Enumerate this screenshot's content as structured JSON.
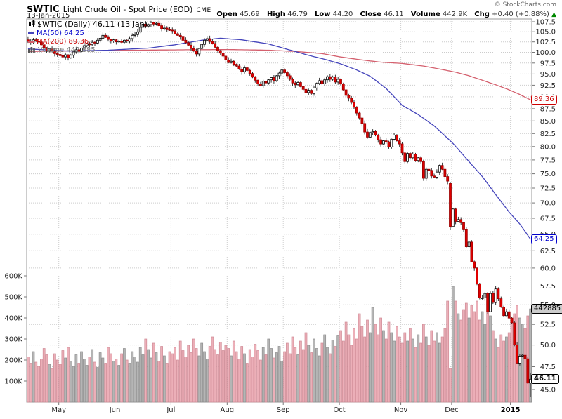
{
  "header": {
    "symbol": "$WTIC",
    "title": "Light Crude Oil - Spot Price (EOD)",
    "exchange": "CME",
    "date": "13-Jan-2015",
    "copyright": "© StockCharts.com",
    "quote": {
      "open_label": "Open",
      "open": "45.69",
      "high_label": "High",
      "high": "46.79",
      "low_label": "Low",
      "low": "44.20",
      "close_label": "Close",
      "close": "46.11",
      "volume_label": "Volume",
      "volume": "442.9K",
      "chg_label": "Chg",
      "chg": "+0.40 (+0.88%)",
      "direction": "▲"
    }
  },
  "legend": {
    "main": "$WTIC (Daily) 46.11 (13 Jan)",
    "ma50": "MA(50) 64.25",
    "ma200": "MA(200) 89.36",
    "volume": "Volume 442,885"
  },
  "colors": {
    "up_fill": "#ffffff",
    "up_stroke": "#000000",
    "down_fill": "#e00000",
    "down_stroke": "#990000",
    "wick": "#333333",
    "ma50": "#4444bb",
    "ma50_text": "#0000cc",
    "ma200": "#d4606e",
    "ma200_text": "#cc0000",
    "vol_up_fill": "#b5b5b5",
    "vol_up_stroke": "#8d8d8d",
    "vol_down_fill": "#ecafb8",
    "vol_down_stroke": "#cf8a95",
    "grid": "#cccccc",
    "border": "#999999",
    "axis_text": "#222222",
    "chg_up": "#008800"
  },
  "callouts": [
    {
      "id": "ma200",
      "text": "89.36",
      "value": 89.36,
      "scale": "price",
      "color": "#cc0000",
      "bg": "#ffffff",
      "bold": false
    },
    {
      "id": "ma50",
      "text": "64.25",
      "value": 64.25,
      "scale": "price",
      "color": "#0000cc",
      "bg": "#ffffff",
      "bold": false
    },
    {
      "id": "vol",
      "text": "442885",
      "value": 442.885,
      "scale": "volume",
      "color": "#000000",
      "bg": "#cccccc",
      "bold": false
    },
    {
      "id": "last",
      "text": "46.11",
      "value": 46.11,
      "scale": "price",
      "color": "#000000",
      "bg": "#ffffff",
      "bold": true
    }
  ],
  "chart_data": {
    "type": "candlestick+volume",
    "title": "$WTIC Light Crude Oil - Spot Price (EOD) CME, Daily, mid-Apr 2014 to 13-Jan-2015",
    "y_axis": {
      "scale": "log",
      "min": 45.0,
      "max": 107.5,
      "step": 2.5,
      "side": "right"
    },
    "volume_axis": {
      "min": 0,
      "max": 600,
      "step": 100,
      "unit": "K",
      "side": "left"
    },
    "x_axis": {
      "month_ticks": [
        {
          "label": "May",
          "day": 12,
          "bold": false
        },
        {
          "label": "Jun",
          "day": 33,
          "bold": false
        },
        {
          "label": "Jul",
          "day": 54,
          "bold": false
        },
        {
          "label": "Aug",
          "day": 75,
          "bold": false
        },
        {
          "label": "Sep",
          "day": 96,
          "bold": false
        },
        {
          "label": "Oct",
          "day": 117,
          "bold": false
        },
        {
          "label": "Nov",
          "day": 140,
          "bold": false
        },
        {
          "label": "Dec",
          "day": 159,
          "bold": false
        },
        {
          "label": "2015",
          "day": 181,
          "bold": true
        }
      ]
    },
    "closes": [
      102.6,
      102.4,
      103.0,
      102.7,
      102.5,
      101.8,
      101.1,
      100.4,
      100.8,
      100.3,
      99.7,
      99.5,
      99.2,
      98.9,
      99.4,
      98.7,
      99.3,
      100.1,
      100.6,
      100.2,
      101.0,
      101.6,
      102.1,
      101.8,
      102.4,
      102.2,
      102.9,
      103.4,
      104.1,
      103.6,
      103.1,
      102.7,
      103.0,
      102.5,
      102.7,
      102.4,
      102.9,
      102.7,
      103.3,
      104.1,
      104.3,
      104.9,
      106.1,
      106.9,
      106.4,
      106.8,
      107.3,
      106.9,
      107.1,
      106.5,
      105.7,
      105.9,
      105.5,
      105.4,
      105.2,
      104.5,
      104.1,
      103.7,
      102.9,
      102.3,
      101.7,
      100.9,
      100.3,
      99.6,
      100.9,
      101.9,
      102.9,
      103.3,
      102.6,
      102.1,
      101.2,
      100.4,
      99.8,
      99.1,
      98.2,
      97.6,
      97.9,
      97.2,
      96.8,
      96.1,
      95.5,
      96.4,
      95.8,
      95.1,
      94.3,
      93.6,
      92.8,
      92.4,
      93.4,
      93.0,
      93.7,
      94.2,
      93.5,
      94.6,
      95.2,
      95.9,
      95.3,
      94.6,
      93.8,
      93.0,
      92.6,
      93.1,
      92.2,
      91.6,
      90.9,
      91.4,
      90.7,
      91.9,
      92.9,
      93.5,
      92.8,
      93.7,
      94.4,
      93.8,
      94.3,
      93.2,
      93.8,
      92.8,
      91.5,
      90.3,
      89.7,
      88.8,
      87.8,
      86.6,
      85.6,
      84.5,
      82.8,
      81.8,
      82.7,
      82.9,
      82.2,
      81.3,
      80.5,
      81.1,
      80.9,
      79.9,
      81.4,
      82.2,
      81.1,
      80.5,
      78.8,
      77.2,
      78.7,
      77.9,
      78.6,
      77.4,
      77.9,
      77.2,
      74.2,
      75.8,
      75.6,
      74.6,
      74.4,
      75.3,
      76.5,
      75.8,
      74.5,
      73.7,
      66.2,
      69.0,
      67.0,
      67.3,
      66.8,
      65.8,
      63.1,
      63.8,
      60.9,
      60.0,
      57.8,
      55.9,
      55.9,
      56.5,
      54.1,
      56.5,
      55.3,
      57.1,
      55.8,
      54.7,
      53.6,
      54.1,
      53.3,
      52.7,
      50.0,
      47.9,
      48.7,
      48.8,
      48.4,
      45.7,
      46.11
    ],
    "volumes_k": [
      215,
      185,
      240,
      190,
      170,
      205,
      255,
      225,
      180,
      160,
      230,
      200,
      180,
      245,
      210,
      260,
      195,
      170,
      225,
      185,
      240,
      205,
      175,
      215,
      250,
      190,
      165,
      235,
      210,
      185,
      260,
      230,
      195,
      205,
      175,
      230,
      255,
      200,
      185,
      240,
      215,
      190,
      260,
      225,
      300,
      250,
      210,
      280,
      235,
      195,
      265,
      220,
      185,
      240,
      230,
      260,
      200,
      290,
      245,
      215,
      270,
      235,
      300,
      255,
      220,
      280,
      240,
      205,
      265,
      310,
      250,
      225,
      285,
      245,
      270,
      255,
      220,
      290,
      240,
      205,
      265,
      230,
      185,
      250,
      215,
      275,
      245,
      200,
      260,
      225,
      300,
      255,
      210,
      235,
      265,
      195,
      240,
      280,
      230,
      310,
      260,
      225,
      290,
      250,
      330,
      270,
      235,
      300,
      255,
      220,
      280,
      320,
      260,
      230,
      295,
      265,
      315,
      340,
      290,
      380,
      320,
      270,
      350,
      300,
      420,
      360,
      310,
      390,
      330,
      450,
      370,
      320,
      400,
      340,
      300,
      380,
      330,
      290,
      360,
      310,
      280,
      330,
      290,
      350,
      300,
      260,
      320,
      280,
      370,
      310,
      270,
      340,
      290,
      330,
      280,
      310,
      350,
      480,
      160,
      550,
      480,
      420,
      390,
      440,
      470,
      400,
      460,
      430,
      480,
      390,
      430,
      370,
      480,
      410,
      340,
      300,
      260,
      320,
      290,
      310,
      330,
      390,
      420,
      460,
      400,
      370,
      350,
      410,
      442.885
    ],
    "overrides": {
      "158": [
        73.3,
        73.6,
        65.7,
        66.2
      ],
      "188": [
        45.69,
        46.79,
        44.2,
        46.11
      ]
    },
    "ma50_anchors": [
      [
        0,
        100.8
      ],
      [
        15,
        100.3
      ],
      [
        30,
        100.5
      ],
      [
        45,
        101.0
      ],
      [
        55,
        101.8
      ],
      [
        65,
        102.9
      ],
      [
        72,
        103.4
      ],
      [
        80,
        103.0
      ],
      [
        90,
        102.0
      ],
      [
        96,
        100.9
      ],
      [
        105,
        99.3
      ],
      [
        112,
        98.2
      ],
      [
        117,
        97.3
      ],
      [
        123,
        95.9
      ],
      [
        128,
        94.5
      ],
      [
        134,
        91.8
      ],
      [
        140,
        88.2
      ],
      [
        146,
        86.3
      ],
      [
        152,
        84.0
      ],
      [
        159,
        80.6
      ],
      [
        165,
        77.2
      ],
      [
        170,
        74.5
      ],
      [
        175,
        71.4
      ],
      [
        180,
        68.5
      ],
      [
        184,
        66.6
      ],
      [
        188,
        64.25
      ]
    ],
    "ma200_anchors": [
      [
        0,
        100.2
      ],
      [
        20,
        100.35
      ],
      [
        40,
        100.5
      ],
      [
        60,
        100.6
      ],
      [
        75,
        100.65
      ],
      [
        90,
        100.5
      ],
      [
        100,
        100.2
      ],
      [
        110,
        99.7
      ],
      [
        117,
        98.9
      ],
      [
        125,
        98.2
      ],
      [
        132,
        97.7
      ],
      [
        140,
        97.4
      ],
      [
        148,
        96.8
      ],
      [
        155,
        96.0
      ],
      [
        160,
        95.4
      ],
      [
        165,
        94.6
      ],
      [
        170,
        93.6
      ],
      [
        175,
        92.6
      ],
      [
        180,
        91.5
      ],
      [
        184,
        90.5
      ],
      [
        188,
        89.36
      ]
    ]
  }
}
